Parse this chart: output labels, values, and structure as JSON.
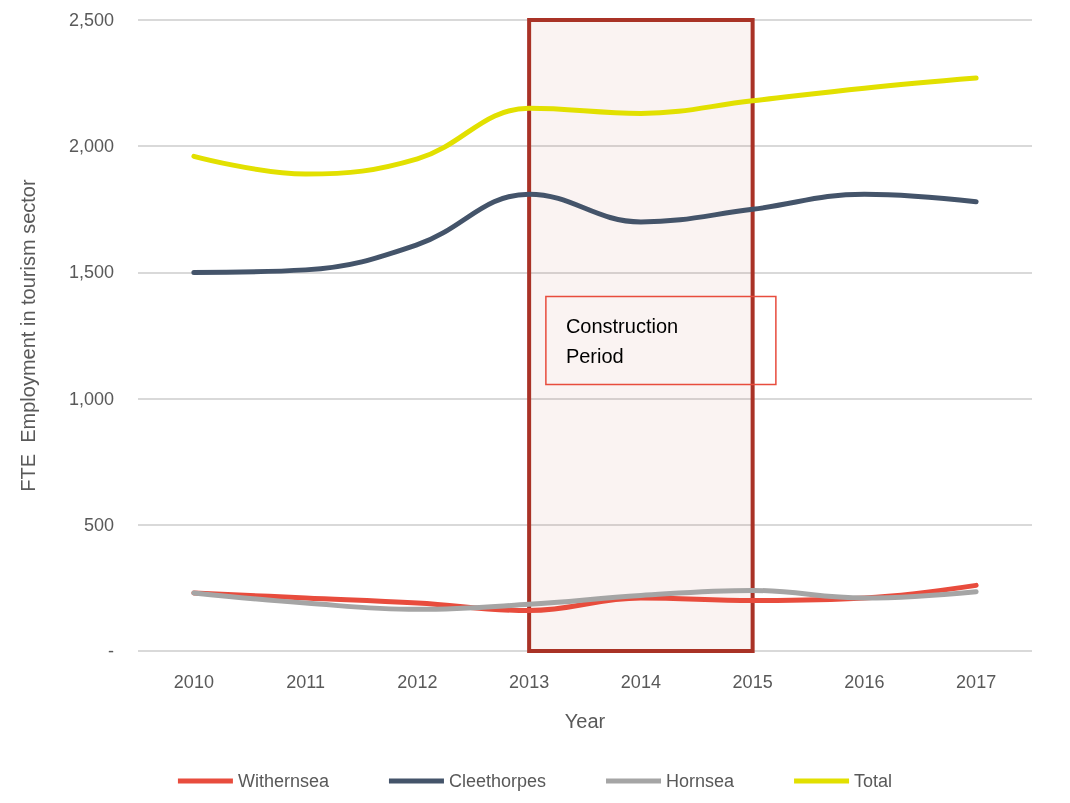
{
  "chart_data": {
    "type": "line",
    "xlabel": "Year",
    "ylabel": "FTE  Employment in tourism sector",
    "categories": [
      "2010",
      "2011",
      "2012",
      "2013",
      "2014",
      "2015",
      "2016",
      "2017"
    ],
    "series": [
      {
        "name": "Withernsea",
        "color": "#e84c3d",
        "values": [
          230,
          210,
          190,
          160,
          210,
          200,
          210,
          260
        ]
      },
      {
        "name": "Cleethorpes",
        "color": "#44546a",
        "values": [
          1500,
          1510,
          1610,
          1810,
          1700,
          1750,
          1810,
          1780
        ]
      },
      {
        "name": "Hornsea",
        "color": "#a5a5a5",
        "values": [
          230,
          190,
          165,
          185,
          220,
          240,
          210,
          235
        ]
      },
      {
        "name": "Total",
        "color": "#e2e000",
        "values": [
          1960,
          1890,
          1950,
          2150,
          2130,
          2180,
          2230,
          2270
        ]
      }
    ],
    "ylim": [
      0,
      2500
    ],
    "yticks": [
      {
        "value": 0,
        "label": "-"
      },
      500,
      {
        "value": 1000,
        "label": "1,000"
      },
      {
        "value": 1500,
        "label": "1,500"
      },
      {
        "value": 2000,
        "label": "2,000"
      },
      {
        "value": 2500,
        "label": "2,500"
      }
    ],
    "bands": [
      {
        "axis": "x",
        "from": "2013",
        "to": "2015",
        "label": "Construction Period",
        "color": "#a93226"
      }
    ],
    "grid": "y",
    "legend": "bottom",
    "marker": "none",
    "line_style": "solid"
  }
}
